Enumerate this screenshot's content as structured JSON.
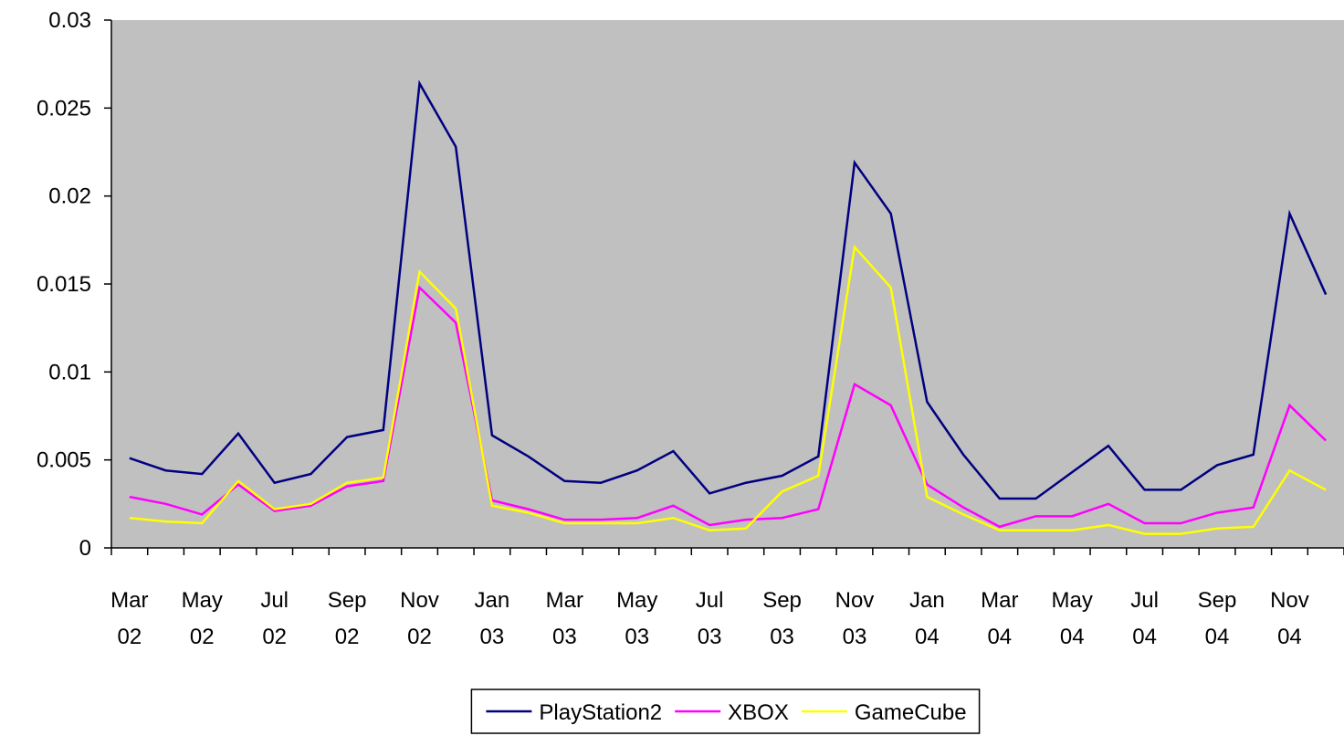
{
  "chart_data": {
    "type": "line",
    "categories": [
      "Mar 02",
      null,
      "May 02",
      null,
      "Jul 02",
      null,
      "Sep 02",
      null,
      "Nov 02",
      null,
      "Jan 03",
      null,
      "Mar 03",
      null,
      "May 03",
      null,
      "Jul 03",
      null,
      "Sep 03",
      null,
      "Nov 03",
      null,
      "Jan 04",
      null,
      "Mar 04",
      null,
      "May 04",
      null,
      "Jul 04",
      null,
      "Sep 04",
      null,
      "Nov 04",
      null
    ],
    "series": [
      {
        "name": "PlayStation2",
        "color": "#000080",
        "values": [
          0.0051,
          0.0044,
          0.0042,
          0.0065,
          0.0037,
          0.0042,
          0.0063,
          0.0067,
          0.0264,
          0.0228,
          0.0064,
          0.0052,
          0.0038,
          0.0037,
          0.0044,
          0.0055,
          0.0031,
          0.0037,
          0.0041,
          0.0052,
          0.0219,
          0.019,
          0.0083,
          0.0053,
          0.0028,
          0.0028,
          0.0043,
          0.0058,
          0.0033,
          0.0033,
          0.0047,
          0.0053,
          0.019,
          0.0144
        ]
      },
      {
        "name": "XBOX",
        "color": "#ff00ff",
        "values": [
          0.0029,
          0.0025,
          0.0019,
          0.0036,
          0.0021,
          0.0024,
          0.0035,
          0.0038,
          0.0148,
          0.0128,
          0.0027,
          0.0022,
          0.0016,
          0.0016,
          0.0017,
          0.0024,
          0.0013,
          0.0016,
          0.0017,
          0.0022,
          0.0093,
          0.0081,
          0.0036,
          0.0023,
          0.0012,
          0.0018,
          0.0018,
          0.0025,
          0.0014,
          0.0014,
          0.002,
          0.0023,
          0.0081,
          0.0061
        ]
      },
      {
        "name": "GameCube",
        "color": "#ffff00",
        "values": [
          0.0017,
          0.0015,
          0.0014,
          0.0038,
          0.0022,
          0.0025,
          0.0037,
          0.004,
          0.0157,
          0.0136,
          0.0024,
          0.002,
          0.0014,
          0.0014,
          0.0014,
          0.0017,
          0.001,
          0.0011,
          0.0032,
          0.0041,
          0.0171,
          0.0148,
          0.0029,
          0.0019,
          0.001,
          0.001,
          0.001,
          0.0013,
          0.0008,
          0.0008,
          0.0011,
          0.0012,
          0.0044,
          0.0033
        ]
      }
    ],
    "ylim": [
      0,
      0.03
    ],
    "yticks": [
      0,
      0.005,
      0.01,
      0.015,
      0.02,
      0.025,
      0.03
    ],
    "grid": false,
    "plot_background": "#c0c0c0",
    "legend": "bottom"
  }
}
